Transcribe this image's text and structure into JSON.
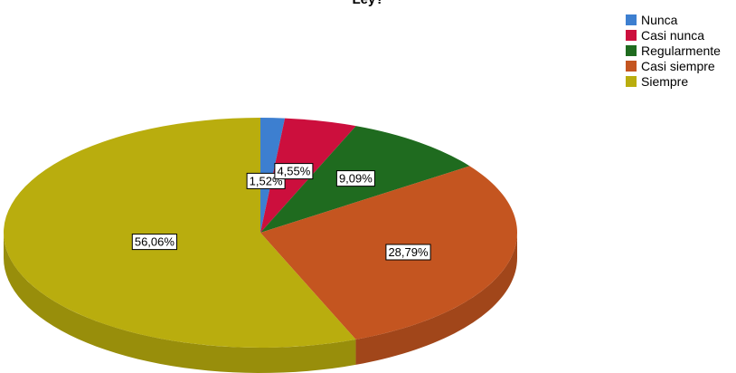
{
  "chart_data": {
    "type": "pie",
    "title": "Ley?",
    "categories": [
      "Nunca",
      "Casi nunca",
      "Regularmente",
      "Casi siempre",
      "Siempre"
    ],
    "values": [
      1.52,
      4.55,
      9.09,
      28.79,
      56.06
    ],
    "data_labels": [
      "1,52%",
      "4,55%",
      "9,09%",
      "28,79%",
      "56,06%"
    ],
    "colors": [
      "#3d7fd0",
      "#cc0f3d",
      "#1f6b1f",
      "#c45520",
      "#b9ad0e"
    ],
    "legend_position": "top-right",
    "style": "3d"
  }
}
